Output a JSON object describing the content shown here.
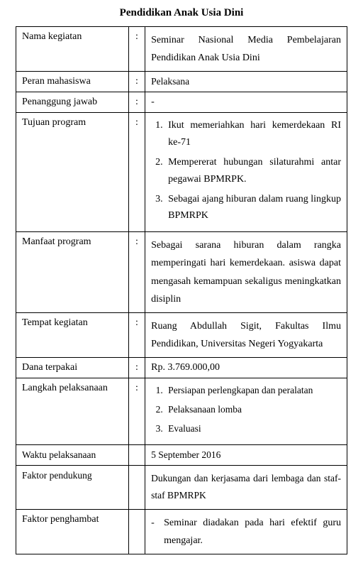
{
  "title": "Pendidikan Anak Usia Dini",
  "rows": {
    "nama_kegiatan": {
      "label": "Nama kegiatan",
      "sep": ":",
      "value": "Seminar Nasional Media Pembelajaran Pendidikan Anak Usia Dini"
    },
    "peran_mahasiswa": {
      "label": "Peran mahasiswa",
      "sep": ":",
      "value": "Pelaksana"
    },
    "penanggung_jawab": {
      "label": "Penanggung jawab",
      "sep": ":",
      "value": "-"
    },
    "tujuan_program": {
      "label": "Tujuan program",
      "sep": ":",
      "items": [
        "Ikut memeriahkan hari kemerdekaan RI ke-71",
        "Mempererat hubungan silaturahmi antar pegawai BPMRPK.",
        "Sebagai ajang hiburan dalam ruang lingkup BPMRPK"
      ]
    },
    "manfaat_program": {
      "label": "Manfaat program",
      "sep": ":",
      "value": "Sebagai sarana hiburan dalam rangka memperingati hari kemerdekaan. asiswa dapat mengasah kemampuan sekaligus meningkatkan disiplin"
    },
    "tempat_kegiatan": {
      "label": "Tempat kegiatan",
      "sep": ":",
      "value": "Ruang Abdullah Sigit, Fakultas Ilmu Pendidikan, Universitas Negeri Yogyakarta"
    },
    "dana_terpakai": {
      "label": "Dana terpakai",
      "sep": ":",
      "value": "Rp. 3.769.000,00"
    },
    "langkah_pelaksanaan": {
      "label": "Langkah pelaksanaan",
      "sep": ":",
      "items": [
        "Persiapan perlengkapan dan peralatan",
        "Pelaksanaan lomba",
        "Evaluasi"
      ]
    },
    "waktu_pelaksanaan": {
      "label": "Waktu pelaksanaan",
      "sep": "",
      "value": "5 September 2016"
    },
    "faktor_pendukung": {
      "label": "Faktor pendukung",
      "sep": "",
      "value": "Dukungan dan kerjasama dari lembaga dan staf-staf BPMRPK"
    },
    "faktor_penghambat": {
      "label": "Faktor penghambat",
      "sep": "",
      "dash_items": [
        "Seminar diadakan pada hari efektif guru mengajar."
      ]
    }
  }
}
